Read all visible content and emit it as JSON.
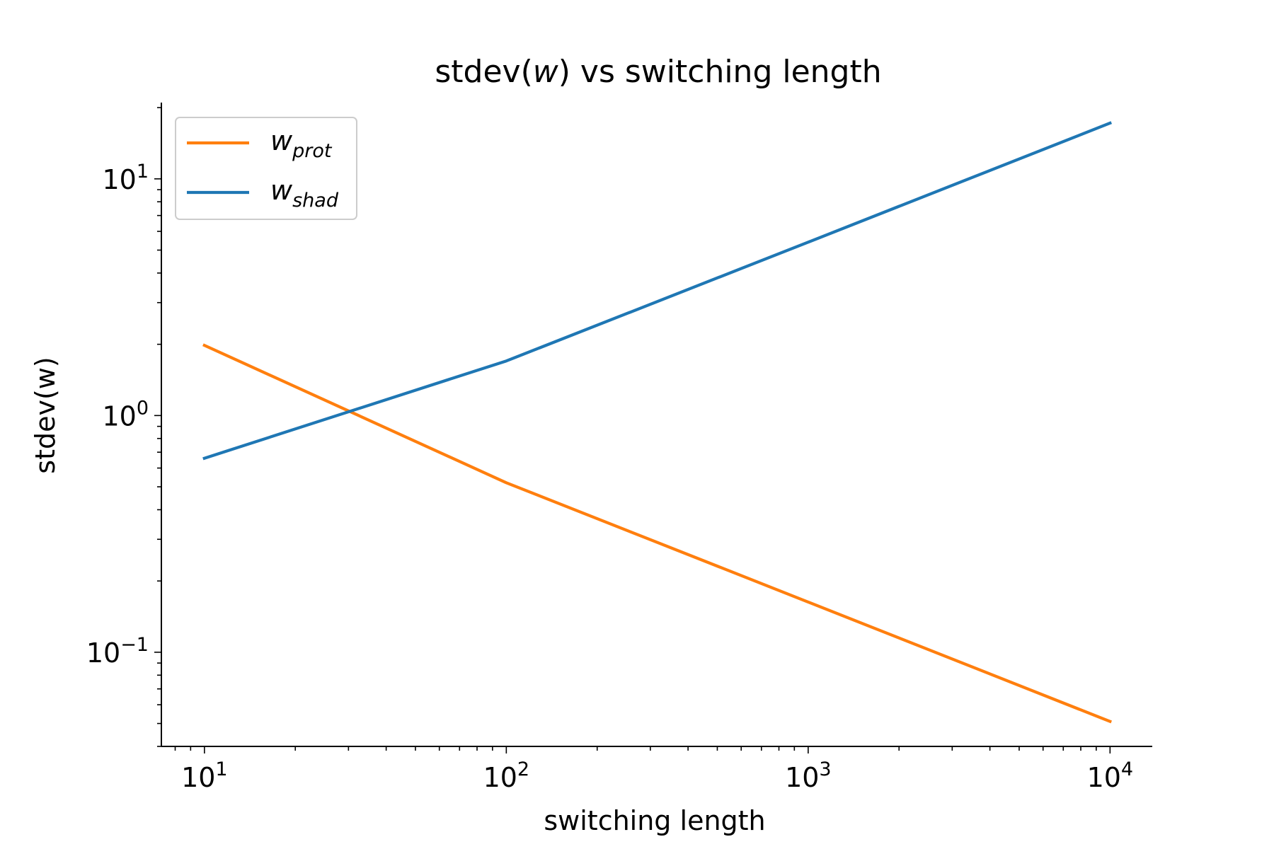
{
  "chart_data": {
    "type": "line",
    "title": "stdev(w) vs switching length",
    "xlabel": "switching length",
    "ylabel": "stdev(w)",
    "xscale": "log",
    "yscale": "log",
    "xlim": [
      7.2,
      13800
    ],
    "ylim": [
      0.04,
      21
    ],
    "grid": false,
    "legend_placement": "top-left",
    "x_ticks": [
      {
        "value": 10,
        "base": "10",
        "exp": "1"
      },
      {
        "value": 100,
        "base": "10",
        "exp": "2"
      },
      {
        "value": 1000,
        "base": "10",
        "exp": "3"
      },
      {
        "value": 10000,
        "base": "10",
        "exp": "4"
      }
    ],
    "y_ticks": [
      {
        "value": 0.1,
        "base": "10",
        "exp": "−1"
      },
      {
        "value": 1,
        "base": "10",
        "exp": "0"
      },
      {
        "value": 10,
        "base": "10",
        "exp": "1"
      }
    ],
    "series": [
      {
        "name": "w",
        "subscript": "prot",
        "color": "#ff7f0e",
        "x": [
          10,
          100,
          1000,
          10000
        ],
        "y": [
          1.98,
          0.52,
          0.163,
          0.051
        ]
      },
      {
        "name": "w",
        "subscript": "shad",
        "color": "#1f77b4",
        "x": [
          10,
          100,
          1000,
          10000
        ],
        "y": [
          0.66,
          1.7,
          5.4,
          17.2
        ]
      }
    ]
  }
}
